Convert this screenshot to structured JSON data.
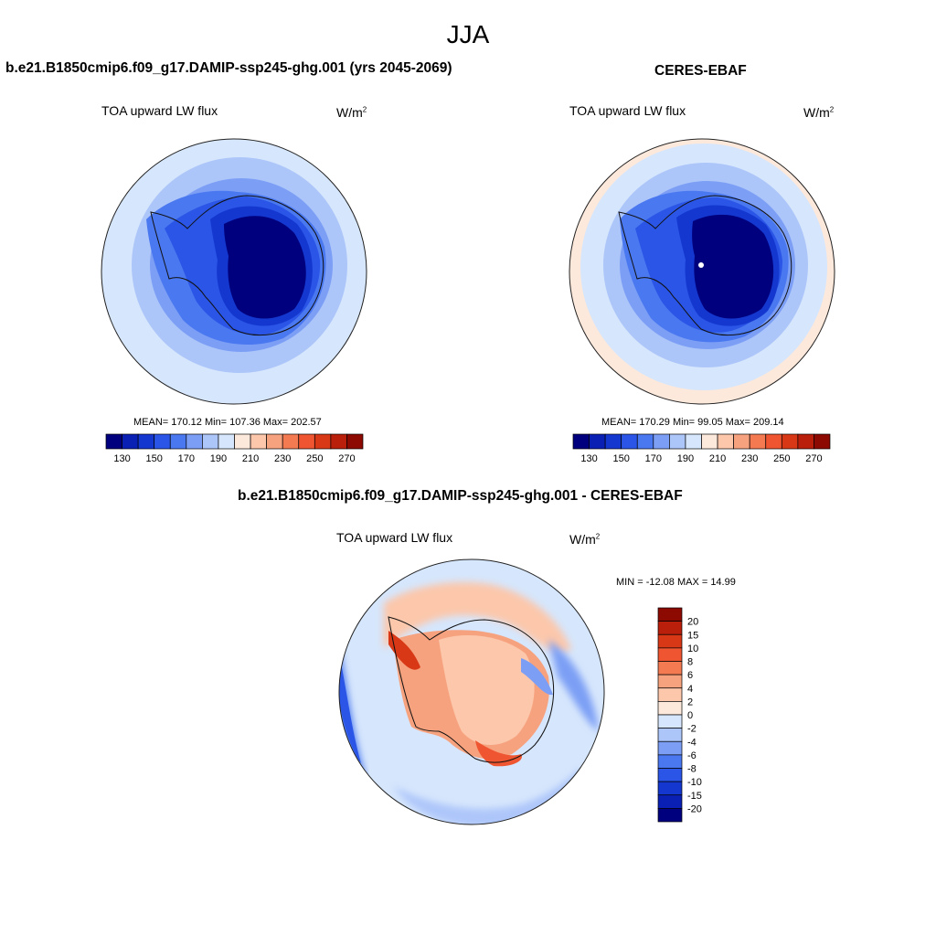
{
  "title": "JJA",
  "panels": {
    "model": {
      "heading": "b.e21.B1850cmip6.f09_g17.DAMIP-ssp245-ghg.001 (yrs 2045-2069)",
      "variable": "TOA upward LW flux",
      "units_base": "W/m",
      "units_exp": "2",
      "stats": "MEAN= 170.12  Min= 107.36  Max= 202.57"
    },
    "obs": {
      "heading": "CERES-EBAF",
      "variable": "TOA upward LW flux",
      "units_base": "W/m",
      "units_exp": "2",
      "stats": "MEAN= 170.29  Min=  99.05  Max= 209.14"
    },
    "diff": {
      "heading": "b.e21.B1850cmip6.f09_g17.DAMIP-ssp245-ghg.001 - CERES-EBAF",
      "variable": "TOA upward LW flux",
      "units_base": "W/m",
      "units_exp": "2",
      "stats": "MIN = -12.08 MAX =  14.99"
    }
  },
  "colorbar_horizontal": {
    "ticks": [
      "130",
      "150",
      "170",
      "190",
      "210",
      "230",
      "250",
      "270"
    ],
    "colors": [
      "#00007f",
      "#0a1fb4",
      "#1438cf",
      "#2a55e6",
      "#4a78f0",
      "#7c9ff5",
      "#adc6fa",
      "#d6e6fc",
      "#fde9dc",
      "#fcc7ab",
      "#f7a27e",
      "#f47a52",
      "#ee5530",
      "#d83816",
      "#b91f0a",
      "#8c0a02"
    ]
  },
  "colorbar_vertical": {
    "ticks": [
      "20",
      "15",
      "10",
      "8",
      "6",
      "4",
      "2",
      "0",
      "-2",
      "-4",
      "-6",
      "-8",
      "-10",
      "-15",
      "-20"
    ],
    "colors": [
      "#8c0a02",
      "#b91f0a",
      "#d83816",
      "#ee5530",
      "#f47a52",
      "#f7a27e",
      "#fcc7ab",
      "#fde9dc",
      "#d6e6fc",
      "#adc6fa",
      "#7c9ff5",
      "#4a78f0",
      "#2a55e6",
      "#1438cf",
      "#0a1fb4",
      "#00007f"
    ]
  }
}
